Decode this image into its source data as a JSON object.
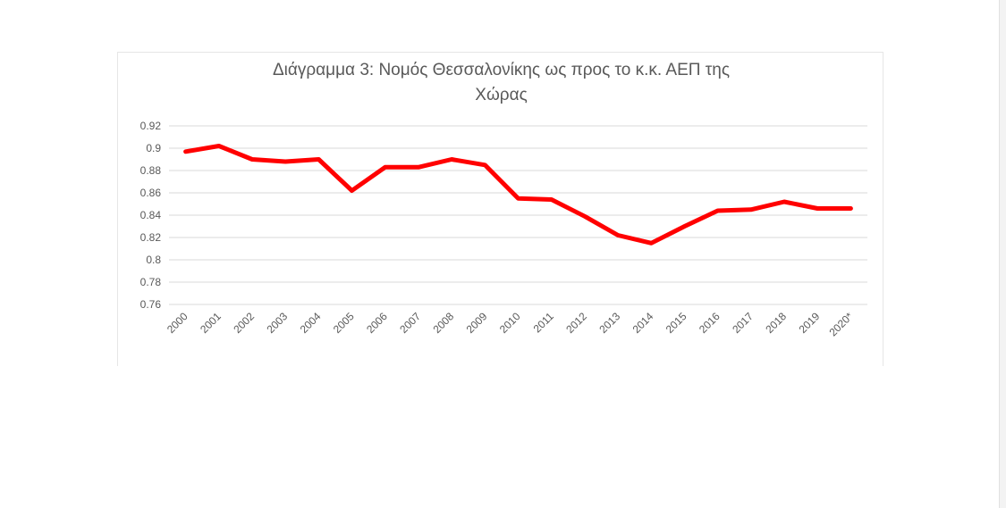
{
  "chart_data": {
    "type": "line",
    "title_line1": "Διάγραμμα 3: Νομός Θεσσαλονίκης ως προς το κ.κ. ΑΕΠ της",
    "title_line2": "Χώρας",
    "categories": [
      "2000",
      "2001",
      "2002",
      "2003",
      "2004",
      "2005",
      "2006",
      "2007",
      "2008",
      "2009",
      "2010",
      "2011",
      "2012",
      "2013",
      "2014",
      "2015",
      "2016",
      "2017",
      "2018",
      "2019",
      "2020*"
    ],
    "series": [
      {
        "values": [
          0.897,
          0.902,
          0.89,
          0.888,
          0.89,
          0.862,
          0.883,
          0.883,
          0.89,
          0.885,
          0.855,
          0.854,
          0.839,
          0.822,
          0.815,
          0.83,
          0.844,
          0.845,
          0.852,
          0.846,
          0.846
        ],
        "color": "#ff0000"
      }
    ],
    "y_ticks": [
      "0.76",
      "0.78",
      "0.8",
      "0.82",
      "0.84",
      "0.86",
      "0.88",
      "0.9",
      "0.92"
    ],
    "ylim": [
      0.76,
      0.92
    ],
    "grid": true,
    "legend": "none"
  },
  "colors": {
    "line": "#ff0000",
    "grid": "#d9d9d9",
    "text": "#595959"
  }
}
